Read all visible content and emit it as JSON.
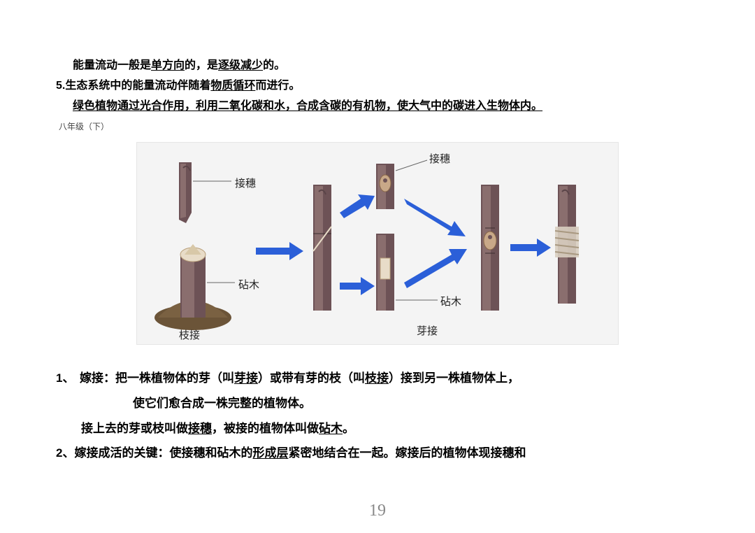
{
  "top": {
    "line1_pre": "能量流动一般是",
    "line1_ul1": "单方向",
    "line1_mid": "的，是",
    "line1_ul2": "逐级减少",
    "line1_post": "的。",
    "line2_pre": "5.生态系统中的能量流动伴随着",
    "line2_ul": "物质循环",
    "line2_post": "而进行。",
    "line3": "绿色植物通过光合作用，利用二氧化碳和水，合成含碳的有机物，使大气中的碳进入生物体内。",
    "grade": "八年级（下）"
  },
  "diagram": {
    "labels": {
      "jiesui1": "接穗",
      "jiesui2": "接穗",
      "zhenmu1": "砧木",
      "zhenmu2": "砧木",
      "zhijie": "枝接",
      "yajie": "芽接"
    },
    "colors": {
      "stem_dark": "#5e4a4e",
      "stem_mid": "#7a5f5f",
      "stem_light": "#9a8080",
      "cut": "#e8dcc8",
      "soil": "#6b5438",
      "arrow": "#2b5fd8",
      "bg": "#f4f4f4"
    }
  },
  "below": {
    "item1_line1_pre": "嫁接：把一株植物体的芽（叫",
    "item1_line1_ul1": "芽接",
    "item1_line1_mid1": "）或带有芽的枝（叫",
    "item1_line1_ul2": "枝接",
    "item1_line1_post": "）接到另一株植物体上，",
    "item1_line2": "使它们愈合成一株完整的植物体。",
    "item1_line3_pre": "接上去的芽或枝叫做",
    "item1_line3_ul1": "接穗",
    "item1_line3_mid": "，被接的植物体叫做",
    "item1_line3_ul2": "砧木",
    "item1_line3_post": "。",
    "item2_pre": "2、嫁接成活的关键：使接穗和砧木的",
    "item2_ul": "形成层",
    "item2_post": "紧密地结合在一起。嫁接后的植物体现接穗和",
    "num1": "1、"
  },
  "page": "19"
}
